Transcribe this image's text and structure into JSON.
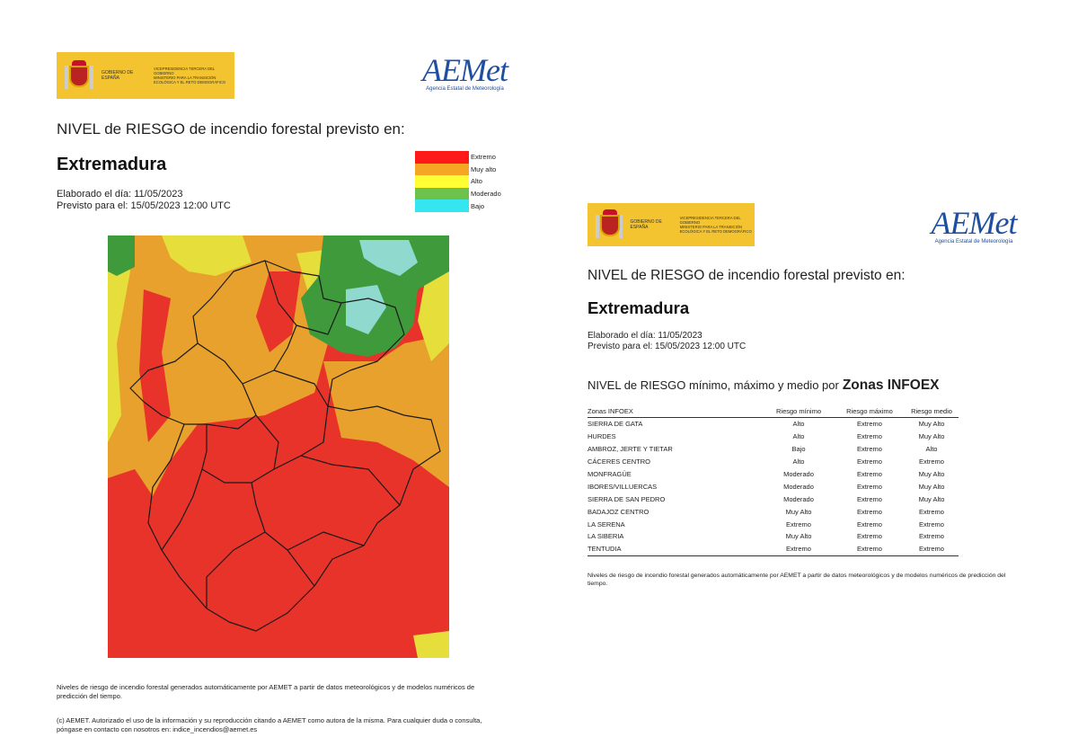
{
  "agency": {
    "gov_name": "Gobierno de España",
    "ministry_lines": [
      "Vicepresidencia Tercera del Gobierno",
      "Ministerio para la Transición Ecológica y el Reto Demográfico"
    ],
    "aemet_word": "AEMet",
    "aemet_subtitle": "Agencia Estatal de Meteorología"
  },
  "heading": "NIVEL de RIESGO de incendio forestal previsto en:",
  "region": "Extremadura",
  "elaborated": "Elaborado el día: 11/05/2023",
  "forecast": "Previsto para el: 15/05/2023 12:00 UTC",
  "legend": [
    {
      "label": "Extremo",
      "color": "#ff1a1a"
    },
    {
      "label": "Muy alto",
      "color": "#f5a623"
    },
    {
      "label": "Alto",
      "color": "#ffff33"
    },
    {
      "label": "Moderado",
      "color": "#6cc24a"
    },
    {
      "label": "Bajo",
      "color": "#33e6f0"
    }
  ],
  "map_colors": {
    "extremo": "#e8332b",
    "muy_alto": "#e8a12c",
    "alto": "#e6de3a",
    "moderado": "#3f9a3c",
    "bajo": "#8fd9cf",
    "border": "#1a1a1a"
  },
  "footnote_levels": "Niveles de riesgo de incendio forestal generados automáticamente por AEMET a partir de datos meteorológicos y de modelos numéricos de predicción del tiempo.",
  "footnote_copyright": "(c) AEMET. Autorizado el uso de la información y su reproducción citando a AEMET como autora de la misma. Para cualquier duda o consulta, póngase en contacto con nosotros en: indice_incendios@aemet.es",
  "zones_heading": "NIVEL de RIESGO mínimo, máximo y medio por",
  "zones_heading_strong": "Zonas INFOEX",
  "zones_columns": [
    "Zonas INFOEX",
    "Riesgo mínimo",
    "Riesgo máximo",
    "Riesgo medio"
  ],
  "zones": [
    [
      "SIERRA DE GATA",
      "Alto",
      "Extremo",
      "Muy Alto"
    ],
    [
      "HURDES",
      "Alto",
      "Extremo",
      "Muy Alto"
    ],
    [
      "AMBROZ, JERTE Y TIETAR",
      "Bajo",
      "Extremo",
      "Alto"
    ],
    [
      "CÁCERES CENTRO",
      "Alto",
      "Extremo",
      "Extremo"
    ],
    [
      "MONFRAGÜE",
      "Moderado",
      "Extremo",
      "Muy Alto"
    ],
    [
      "IBORES/VILLUERCAS",
      "Moderado",
      "Extremo",
      "Muy Alto"
    ],
    [
      "SIERRA DE SAN PEDRO",
      "Moderado",
      "Extremo",
      "Muy Alto"
    ],
    [
      "BADAJOZ CENTRO",
      "Muy Alto",
      "Extremo",
      "Extremo"
    ],
    [
      "LA SERENA",
      "Extremo",
      "Extremo",
      "Extremo"
    ],
    [
      "LA SIBERIA",
      "Muy Alto",
      "Extremo",
      "Extremo"
    ],
    [
      "TENTUDIA",
      "Extremo",
      "Extremo",
      "Extremo"
    ]
  ]
}
